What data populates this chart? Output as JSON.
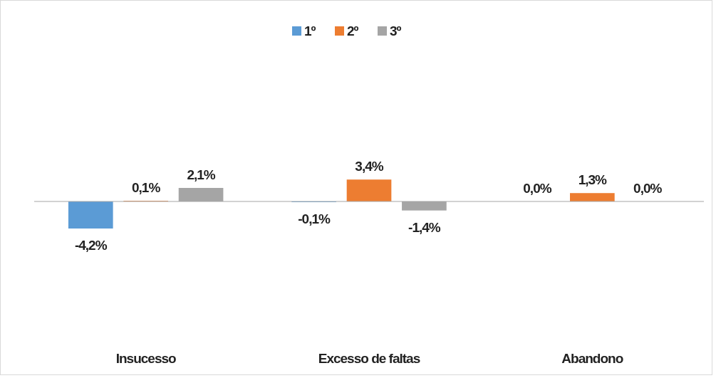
{
  "chart_data": {
    "type": "bar",
    "categories": [
      "Insucesso",
      "Excesso de faltas",
      "Abandono"
    ],
    "series": [
      {
        "name": "1º",
        "color": "#5b9bd5",
        "values": [
          -4.2,
          -0.1,
          0.0
        ],
        "value_labels": [
          "-4,2%",
          "-0,1%",
          "0,0%"
        ]
      },
      {
        "name": "2º",
        "color": "#ed7d31",
        "values": [
          0.1,
          3.4,
          1.3
        ],
        "value_labels": [
          "0,1%",
          "3,4%",
          "1,3%"
        ]
      },
      {
        "name": "3º",
        "color": "#a5a5a5",
        "values": [
          2.1,
          -1.4,
          0.0
        ],
        "value_labels": [
          "2,1%",
          "-1,4%",
          "0,0%"
        ]
      }
    ],
    "legend": "top"
  }
}
